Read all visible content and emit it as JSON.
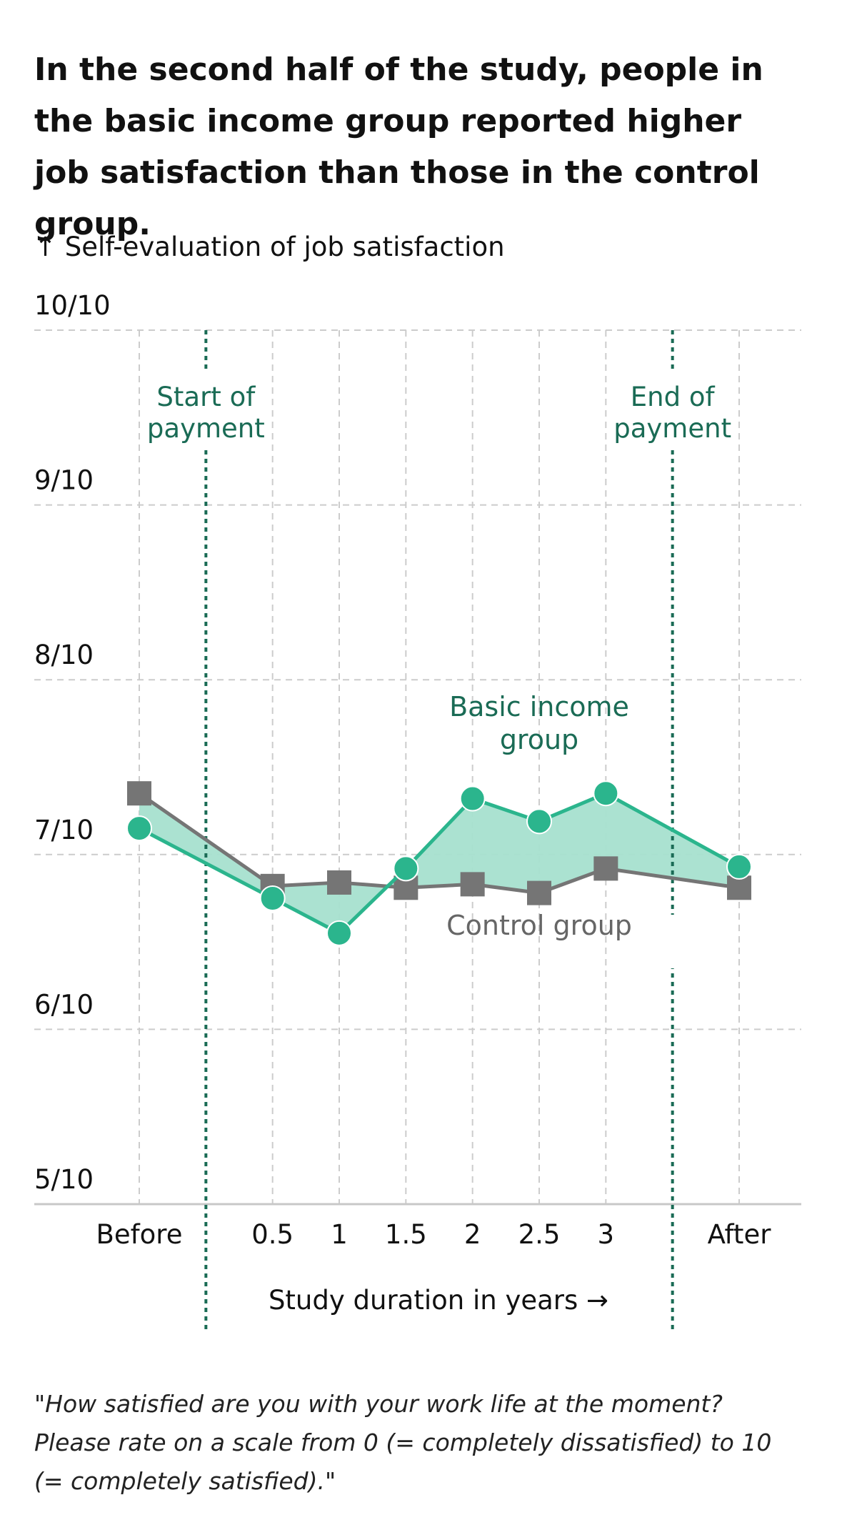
{
  "title": "In the second half of the study, people in the basic income group reported higher job satisfaction than those in the control group.",
  "footnote": "\"How satisfied are you with your work life at the moment? Please rate on a scale from 0 (= completely dissatisfied) to 10 (= completely satisfied).\"",
  "colors": {
    "basic_income": "#2bb58d",
    "basic_income_label": "#1a6b55",
    "control": "#757575",
    "control_label": "#666666",
    "fill": "#a6e0cf",
    "payment_lines": "#1a6b55",
    "grid": "#cccccc"
  },
  "chart_data": {
    "type": "line",
    "ylabel": "↑ Self-evaluation of job satisfaction",
    "xlabel": "Study duration in years →",
    "categories": [
      "Before",
      "0.5",
      "1",
      "1.5",
      "2",
      "2.5",
      "3",
      "After"
    ],
    "x": [
      -0.5,
      0.5,
      1,
      1.5,
      2,
      2.5,
      3,
      4
    ],
    "ylim": [
      5,
      10
    ],
    "yticks": [
      {
        "value": 5,
        "label": "5/10"
      },
      {
        "value": 6,
        "label": "6/10"
      },
      {
        "value": 7,
        "label": "7/10"
      },
      {
        "value": 8,
        "label": "8/10"
      },
      {
        "value": 9,
        "label": "9/10"
      },
      {
        "value": 10,
        "label": "10/10"
      }
    ],
    "series": [
      {
        "name": "Basic income group",
        "marker": "circle",
        "values": [
          7.15,
          6.75,
          6.55,
          6.92,
          7.32,
          7.19,
          7.35,
          6.93
        ]
      },
      {
        "name": "Control group",
        "marker": "square",
        "values": [
          7.35,
          6.82,
          6.84,
          6.81,
          6.83,
          6.78,
          6.92,
          6.81
        ]
      }
    ],
    "annotations": [
      {
        "text": "Start of payment",
        "x": 0
      },
      {
        "text": "End of payment",
        "x": 3.5
      }
    ],
    "grid": true
  }
}
